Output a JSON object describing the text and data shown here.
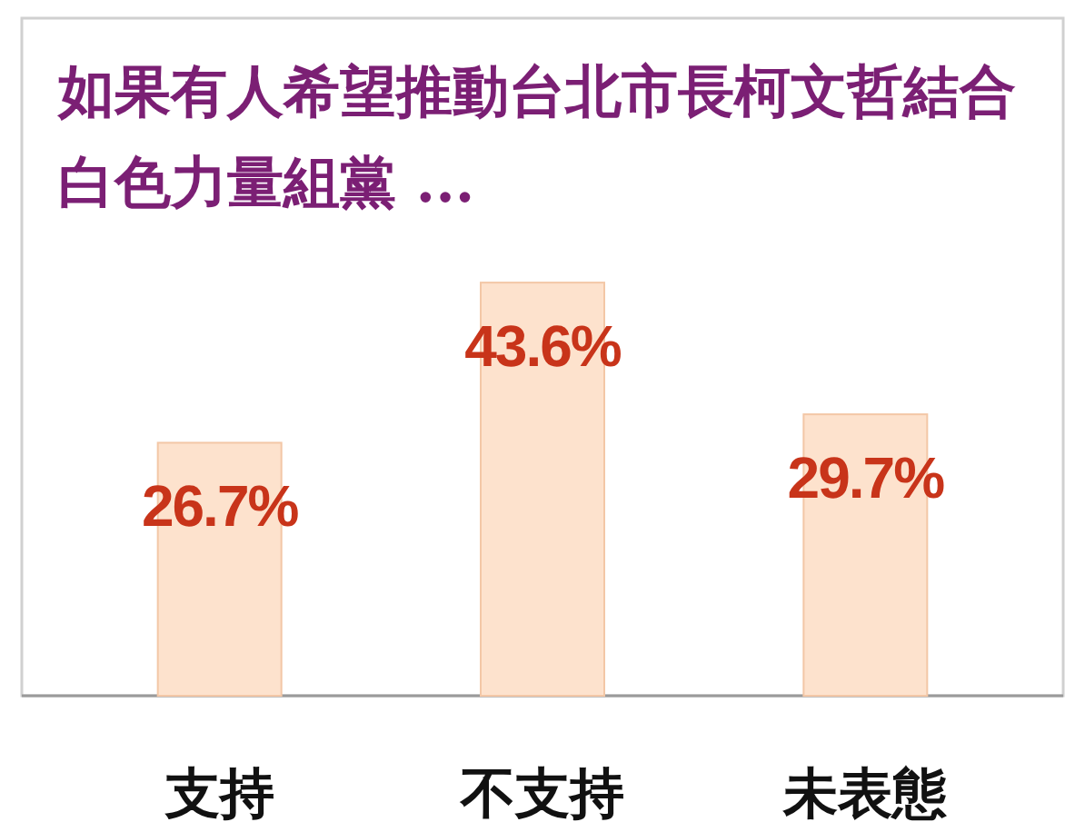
{
  "chart_data": {
    "type": "bar",
    "title": "如果有人希望推動台北市長柯文哲結合白色力量組黨 ...",
    "categories": [
      "支持",
      "不支持",
      "未表態"
    ],
    "values": [
      26.7,
      43.6,
      29.7
    ],
    "value_labels": [
      "26.7%",
      "43.6%",
      "29.7%"
    ],
    "color": "#fde2cd"
  }
}
